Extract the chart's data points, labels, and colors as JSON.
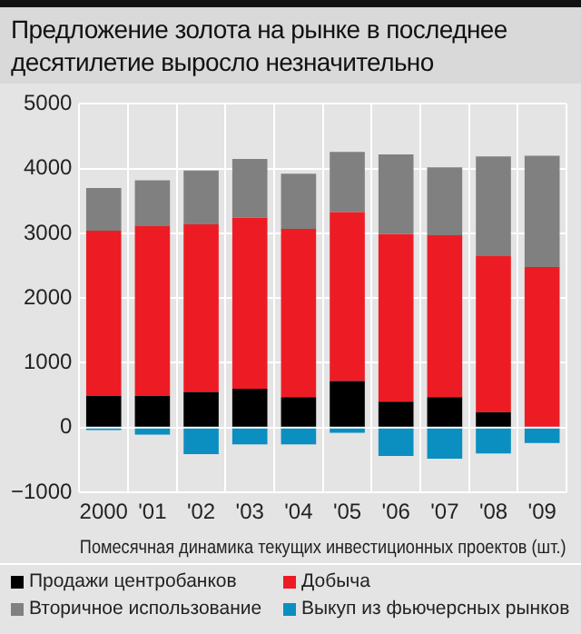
{
  "chart_data": {
    "type": "bar",
    "title": "Предложение золота на рынке в последнее десятилетие выросло незначительно",
    "xlabel": "Помесячная динамика текущих инвестиционных проектов (шт.)",
    "categories": [
      "2000",
      "'01",
      "'02",
      "'03",
      "'04",
      "'05",
      "'06",
      "'07",
      "'08",
      "'09"
    ],
    "stacked": true,
    "series": [
      {
        "name": "Продажи центробанков",
        "color": "#000000",
        "values": [
          490,
          490,
          550,
          600,
          470,
          720,
          400,
          470,
          240,
          0
        ]
      },
      {
        "name": "Добыча",
        "color": "#ed1c24",
        "values": [
          2550,
          2620,
          2590,
          2640,
          2600,
          2610,
          2590,
          2500,
          2410,
          2480
        ]
      },
      {
        "name": "Вторичное использование",
        "color": "#808080",
        "values": [
          660,
          710,
          830,
          910,
          850,
          930,
          1230,
          1050,
          1540,
          1720
        ]
      },
      {
        "name": "Выкуп из фьючерсных рынков",
        "color": "#0a8fc0",
        "values": [
          -40,
          -110,
          -410,
          -260,
          -260,
          -80,
          -440,
          -480,
          -400,
          -240
        ]
      }
    ],
    "ylim": [
      -1000,
      5000
    ],
    "yticks": [
      -1000,
      0,
      1000,
      2000,
      3000,
      4000,
      5000
    ],
    "grid": true,
    "legend": "bottom"
  }
}
